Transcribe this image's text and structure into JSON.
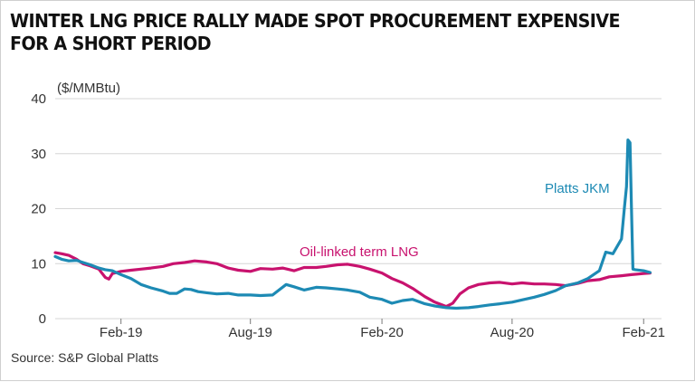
{
  "title_lines": [
    "WINTER LNG PRICE RALLY MADE SPOT PROCUREMENT EXPENSIVE",
    "FOR A SHORT PERIOD"
  ],
  "source": "Source: S&P Global Platts",
  "chart_data": {
    "type": "line",
    "ylabel": "($/MMBtu)",
    "ylim": [
      0,
      40
    ],
    "yticks": [
      0,
      10,
      20,
      30,
      40
    ],
    "xlim": [
      "2018-11-01",
      "2021-02-26"
    ],
    "xticks": [
      {
        "date": "2019-02-01",
        "label": "Feb-19"
      },
      {
        "date": "2019-08-01",
        "label": "Aug-19"
      },
      {
        "date": "2020-02-01",
        "label": "Feb-20"
      },
      {
        "date": "2020-08-01",
        "label": "Aug-20"
      },
      {
        "date": "2021-02-01",
        "label": "Feb-21"
      }
    ],
    "grid": "horizontal",
    "series": [
      {
        "name": "Oil-linked term LNG",
        "color": "#c8126e",
        "points": [
          [
            "2018-11-01",
            12.0
          ],
          [
            "2018-11-10",
            11.8
          ],
          [
            "2018-11-20",
            11.5
          ],
          [
            "2018-12-01",
            10.8
          ],
          [
            "2018-12-10",
            10.0
          ],
          [
            "2018-12-20",
            9.6
          ],
          [
            "2019-01-01",
            9.0
          ],
          [
            "2019-01-10",
            7.5
          ],
          [
            "2019-01-15",
            7.2
          ],
          [
            "2019-01-20",
            8.2
          ],
          [
            "2019-02-01",
            8.6
          ],
          [
            "2019-02-15",
            8.8
          ],
          [
            "2019-03-01",
            9.0
          ],
          [
            "2019-03-15",
            9.2
          ],
          [
            "2019-04-01",
            9.5
          ],
          [
            "2019-04-15",
            10.0
          ],
          [
            "2019-05-01",
            10.2
          ],
          [
            "2019-05-15",
            10.5
          ],
          [
            "2019-06-01",
            10.3
          ],
          [
            "2019-06-15",
            10.0
          ],
          [
            "2019-07-01",
            9.2
          ],
          [
            "2019-07-15",
            8.8
          ],
          [
            "2019-08-01",
            8.6
          ],
          [
            "2019-08-15",
            9.1
          ],
          [
            "2019-09-01",
            9.0
          ],
          [
            "2019-09-15",
            9.2
          ],
          [
            "2019-10-01",
            8.7
          ],
          [
            "2019-10-15",
            9.3
          ],
          [
            "2019-11-01",
            9.3
          ],
          [
            "2019-11-15",
            9.5
          ],
          [
            "2019-12-01",
            9.8
          ],
          [
            "2019-12-15",
            9.9
          ],
          [
            "2020-01-01",
            9.5
          ],
          [
            "2020-01-15",
            9.0
          ],
          [
            "2020-02-01",
            8.3
          ],
          [
            "2020-02-15",
            7.3
          ],
          [
            "2020-03-01",
            6.5
          ],
          [
            "2020-03-15",
            5.5
          ],
          [
            "2020-04-01",
            4.0
          ],
          [
            "2020-04-15",
            3.0
          ],
          [
            "2020-05-01",
            2.2
          ],
          [
            "2020-05-10",
            2.8
          ],
          [
            "2020-05-20",
            4.5
          ],
          [
            "2020-06-01",
            5.6
          ],
          [
            "2020-06-15",
            6.2
          ],
          [
            "2020-07-01",
            6.5
          ],
          [
            "2020-07-15",
            6.6
          ],
          [
            "2020-08-01",
            6.3
          ],
          [
            "2020-08-15",
            6.5
          ],
          [
            "2020-09-01",
            6.3
          ],
          [
            "2020-09-15",
            6.3
          ],
          [
            "2020-10-01",
            6.2
          ],
          [
            "2020-10-15",
            6.0
          ],
          [
            "2020-11-01",
            6.4
          ],
          [
            "2020-11-15",
            6.9
          ],
          [
            "2020-12-01",
            7.1
          ],
          [
            "2020-12-15",
            7.6
          ],
          [
            "2021-01-01",
            7.8
          ],
          [
            "2021-01-15",
            8.0
          ],
          [
            "2021-02-01",
            8.2
          ],
          [
            "2021-02-10",
            8.3
          ]
        ]
      },
      {
        "name": "Platts JKM",
        "color": "#1d8ab4",
        "points": [
          [
            "2018-11-01",
            11.3
          ],
          [
            "2018-11-10",
            10.8
          ],
          [
            "2018-11-20",
            10.5
          ],
          [
            "2018-12-01",
            10.6
          ],
          [
            "2018-12-10",
            10.2
          ],
          [
            "2018-12-20",
            9.8
          ],
          [
            "2019-01-01",
            9.2
          ],
          [
            "2019-01-10",
            8.9
          ],
          [
            "2019-01-20",
            8.7
          ],
          [
            "2019-02-01",
            8.0
          ],
          [
            "2019-02-15",
            7.3
          ],
          [
            "2019-03-01",
            6.2
          ],
          [
            "2019-03-15",
            5.6
          ],
          [
            "2019-04-01",
            5.0
          ],
          [
            "2019-04-10",
            4.6
          ],
          [
            "2019-04-20",
            4.6
          ],
          [
            "2019-05-01",
            5.4
          ],
          [
            "2019-05-10",
            5.3
          ],
          [
            "2019-05-20",
            4.9
          ],
          [
            "2019-06-01",
            4.7
          ],
          [
            "2019-06-15",
            4.5
          ],
          [
            "2019-07-01",
            4.6
          ],
          [
            "2019-07-15",
            4.3
          ],
          [
            "2019-08-01",
            4.3
          ],
          [
            "2019-08-15",
            4.2
          ],
          [
            "2019-09-01",
            4.3
          ],
          [
            "2019-09-10",
            5.2
          ],
          [
            "2019-09-20",
            6.2
          ],
          [
            "2019-10-01",
            5.8
          ],
          [
            "2019-10-15",
            5.2
          ],
          [
            "2019-11-01",
            5.7
          ],
          [
            "2019-11-15",
            5.6
          ],
          [
            "2019-12-01",
            5.4
          ],
          [
            "2019-12-15",
            5.2
          ],
          [
            "2020-01-01",
            4.8
          ],
          [
            "2020-01-15",
            3.9
          ],
          [
            "2020-02-01",
            3.5
          ],
          [
            "2020-02-15",
            2.8
          ],
          [
            "2020-03-01",
            3.3
          ],
          [
            "2020-03-15",
            3.5
          ],
          [
            "2020-04-01",
            2.7
          ],
          [
            "2020-04-15",
            2.3
          ],
          [
            "2020-05-01",
            2.0
          ],
          [
            "2020-05-15",
            1.9
          ],
          [
            "2020-06-01",
            2.0
          ],
          [
            "2020-06-15",
            2.2
          ],
          [
            "2020-07-01",
            2.5
          ],
          [
            "2020-07-15",
            2.7
          ],
          [
            "2020-08-01",
            3.0
          ],
          [
            "2020-08-15",
            3.4
          ],
          [
            "2020-09-01",
            3.9
          ],
          [
            "2020-09-15",
            4.4
          ],
          [
            "2020-10-01",
            5.1
          ],
          [
            "2020-10-15",
            6.0
          ],
          [
            "2020-11-01",
            6.5
          ],
          [
            "2020-11-15",
            7.3
          ],
          [
            "2020-12-01",
            8.7
          ],
          [
            "2020-12-10",
            12.1
          ],
          [
            "2020-12-20",
            11.8
          ],
          [
            "2021-01-01",
            14.5
          ],
          [
            "2021-01-05",
            20.0
          ],
          [
            "2021-01-08",
            24.0
          ],
          [
            "2021-01-10",
            32.5
          ],
          [
            "2021-01-13",
            32.0
          ],
          [
            "2021-01-15",
            20.0
          ],
          [
            "2021-01-17",
            9.0
          ],
          [
            "2021-01-20",
            8.9
          ],
          [
            "2021-02-01",
            8.7
          ],
          [
            "2021-02-10",
            8.4
          ]
        ]
      }
    ],
    "annotations": [
      {
        "text": "Oil-linked term LNG",
        "series": "Oil-linked term LNG",
        "color": "#c8126e"
      },
      {
        "text": "Platts JKM",
        "series": "Platts JKM",
        "color": "#1d8ab4"
      }
    ]
  }
}
